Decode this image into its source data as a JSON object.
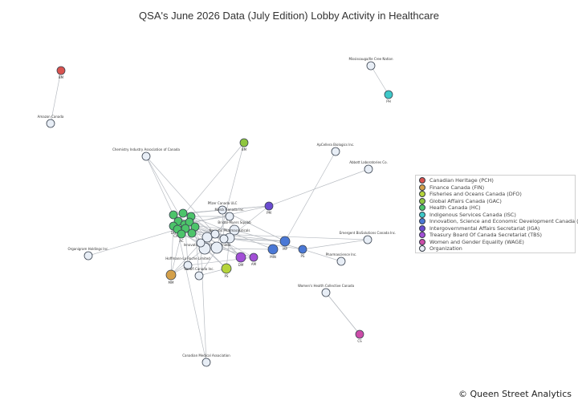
{
  "title": "QSA's June 2026 Data (July Edition) Lobby Activity in Healthcare",
  "credit": "© Queen Street Analytics",
  "legend": [
    {
      "label": "Canadian Heritage (PCH)",
      "color": "#d9534f"
    },
    {
      "label": "Finance Canada (FIN)",
      "color": "#d4a04a"
    },
    {
      "label": "Fisheries and Oceans Canada (DFO)",
      "color": "#b5d43b"
    },
    {
      "label": "Global Affairs Canada (GAC)",
      "color": "#8fc63f"
    },
    {
      "label": "Health Canada (HC)",
      "color": "#4cc46a"
    },
    {
      "label": "Indigenous Services Canada (ISC)",
      "color": "#3ec8c8"
    },
    {
      "label": "Innovation, Science and Economic Development Canada (ISED)",
      "color": "#4a78d6"
    },
    {
      "label": "Intergovernmental Affairs Secretariat (IGA)",
      "color": "#6a4bd0"
    },
    {
      "label": "Treasury Board Of Canada Secretariat (TBS)",
      "color": "#a24fd6"
    },
    {
      "label": "Women and Gender Equality (WAGE)",
      "color": "#cc4ca8"
    },
    {
      "label": "Organization",
      "color": "#e8eef6"
    }
  ],
  "nodes": [
    {
      "id": "pch",
      "label": "BM",
      "type": "Canadian Heritage (PCH)"
    },
    {
      "id": "amazon",
      "label": "Amazon Canada",
      "type": "Organization"
    },
    {
      "id": "mcn",
      "label": "Mississauga/Ile Cree Nation",
      "type": "Organization"
    },
    {
      "id": "isc",
      "label": "PH",
      "type": "Indigenous Services Canada (ISC)"
    },
    {
      "id": "chem",
      "label": "Chemistry Industry Association of Canada",
      "type": "Organization"
    },
    {
      "id": "gac",
      "label": "BM",
      "type": "Global Affairs Canada (GAC)"
    },
    {
      "id": "bio",
      "label": "ApCellera Biologics Inc.",
      "type": "Organization"
    },
    {
      "id": "abbott",
      "label": "Abbott Laboratories Co.",
      "type": "Organization"
    },
    {
      "id": "pfizer",
      "label": "Pfizer Canada ULC",
      "type": "Organization"
    },
    {
      "id": "bms",
      "label": "Merck Canada Inc.",
      "type": "Organization"
    },
    {
      "id": "msd",
      "label": "Bristol-Myers Squibb",
      "type": "Organization"
    },
    {
      "id": "gsk",
      "label": "Innovative Medicines Canada",
      "type": "Organization"
    },
    {
      "id": "novartis",
      "label": "Novartis Pharmaceuticals",
      "type": "Organization"
    },
    {
      "id": "iga",
      "label": "PM",
      "type": "Intergovernmental Affairs Secretariat (IGA)"
    },
    {
      "id": "emergent",
      "label": "Emergent BioSolutions Canada Inc.",
      "type": "Organization"
    },
    {
      "id": "ised1",
      "label": "MP",
      "type": "Innovation, Science and Economic Development Canada (ISED)"
    },
    {
      "id": "ised2",
      "label": "PS",
      "type": "Innovation, Science and Economic Development Canada (ISED)"
    },
    {
      "id": "ised3",
      "label": "MIN",
      "type": "Innovation, Science and Economic Development Canada (ISED)"
    },
    {
      "id": "pharmascience",
      "label": "Pharmascience Inc.",
      "type": "Organization"
    },
    {
      "id": "tbs1",
      "label": "DM",
      "type": "Treasury Board Of Canada Secretariat (TBS)"
    },
    {
      "id": "tbs2",
      "label": "AM",
      "type": "Treasury Board Of Canada Secretariat (TBS)"
    },
    {
      "id": "dfo",
      "label": "PS",
      "type": "Fisheries and Oceans Canada (DFO)"
    },
    {
      "id": "organigram",
      "label": "Organigram Holdings Inc.",
      "type": "Organization"
    },
    {
      "id": "roche",
      "label": "Hoffmann-La Roche Limited",
      "type": "Organization"
    },
    {
      "id": "sanofi",
      "label": "Sanofi Canada Inc.",
      "type": "Organization"
    },
    {
      "id": "fin",
      "label": "MM",
      "type": "Finance Canada (FIN)"
    },
    {
      "id": "whc",
      "label": "Women's Health Collective Canada",
      "type": "Organization"
    },
    {
      "id": "wage",
      "label": "CS",
      "type": "Women and Gender Equality (WAGE)"
    },
    {
      "id": "cma",
      "label": "Canadian Medical Association",
      "type": "Organization"
    },
    {
      "id": "hc1",
      "label": "PH",
      "type": "Health Canada (HC)"
    },
    {
      "id": "hc2",
      "label": "MP",
      "type": "Health Canada (HC)"
    },
    {
      "id": "hc3",
      "label": "ADM",
      "type": "Health Canada (HC)"
    },
    {
      "id": "hc4",
      "label": "DM",
      "type": "Health Canada (HC)"
    },
    {
      "id": "hc5",
      "label": "MIN",
      "type": "Health Canada (HC)"
    },
    {
      "id": "hc6",
      "label": "DG",
      "type": "Health Canada (HC)"
    },
    {
      "id": "hc7",
      "label": "PS",
      "type": "Health Canada (HC)"
    },
    {
      "id": "hc8",
      "label": "CMO",
      "type": "Health Canada (HC)"
    },
    {
      "id": "hc9",
      "label": "SP",
      "type": "Health Canada (HC)"
    },
    {
      "id": "hc10",
      "label": "PM",
      "type": "Health Canada (HC)"
    },
    {
      "id": "hc11",
      "label": "AC",
      "type": "Health Canada (HC)"
    },
    {
      "id": "hc12",
      "label": "CS",
      "type": "Health Canada (HC)"
    },
    {
      "id": "orgA",
      "label": "Canadian Generic Pharmaceutical Association",
      "type": "Organization"
    },
    {
      "id": "orgB",
      "label": "AstraZeneca Canada Inc.",
      "type": "Organization"
    },
    {
      "id": "orgC",
      "label": "Johnson & Johnson",
      "type": "Organization"
    },
    {
      "id": "orgD",
      "label": "BIOTECanada",
      "type": "Organization"
    },
    {
      "id": "orgE",
      "label": "Medtronic of Canada Ltd.",
      "type": "Organization"
    }
  ],
  "edges": [
    [
      "pch",
      "amazon"
    ],
    [
      "mcn",
      "isc"
    ],
    [
      "bio",
      "ised1"
    ],
    [
      "abbott",
      "iga"
    ],
    [
      "chem",
      "hc1"
    ],
    [
      "chem",
      "hc5"
    ],
    [
      "chem",
      "orgA"
    ],
    [
      "gac",
      "hc4"
    ],
    [
      "gac",
      "orgB"
    ],
    [
      "pfizer",
      "hc1"
    ],
    [
      "pfizer",
      "hc2"
    ],
    [
      "pfizer",
      "iga"
    ],
    [
      "pfizer",
      "ised1"
    ],
    [
      "bms",
      "hc3"
    ],
    [
      "bms",
      "hc7"
    ],
    [
      "msd",
      "hc5"
    ],
    [
      "msd",
      "ised2"
    ],
    [
      "gsk",
      "hc2"
    ],
    [
      "gsk",
      "ised1"
    ],
    [
      "gsk",
      "tbs1"
    ],
    [
      "novartis",
      "hc6"
    ],
    [
      "novartis",
      "dfo"
    ],
    [
      "emergent",
      "ised2"
    ],
    [
      "pharmascience",
      "ised2"
    ],
    [
      "organigram",
      "hc8"
    ],
    [
      "roche",
      "hc9"
    ],
    [
      "roche",
      "fin"
    ],
    [
      "sanofi",
      "hc10"
    ],
    [
      "sanofi",
      "dfo"
    ],
    [
      "whc",
      "wage"
    ],
    [
      "cma",
      "orgE"
    ],
    [
      "fin",
      "orgC"
    ],
    [
      "fin",
      "hc11"
    ],
    [
      "orgA",
      "hc1"
    ],
    [
      "orgA",
      "hc2"
    ],
    [
      "orgA",
      "hc3"
    ],
    [
      "orgA",
      "hc4"
    ],
    [
      "orgA",
      "ised1"
    ],
    [
      "orgA",
      "tbs1"
    ],
    [
      "orgB",
      "hc5"
    ],
    [
      "orgB",
      "hc6"
    ],
    [
      "orgB",
      "tbs2"
    ],
    [
      "orgB",
      "iga"
    ],
    [
      "orgC",
      "hc7"
    ],
    [
      "orgC",
      "hc8"
    ],
    [
      "orgC",
      "dfo"
    ],
    [
      "orgC",
      "ised3"
    ],
    [
      "orgD",
      "hc9"
    ],
    [
      "orgD",
      "hc10"
    ],
    [
      "orgD",
      "ised1"
    ],
    [
      "orgD",
      "tbs1"
    ],
    [
      "orgE",
      "hc11"
    ],
    [
      "orgE",
      "hc12"
    ],
    [
      "orgE",
      "fin"
    ],
    [
      "orgE",
      "dfo"
    ],
    [
      "hc1",
      "tbs2"
    ],
    [
      "hc2",
      "iga"
    ],
    [
      "hc3",
      "ised3"
    ],
    [
      "hc4",
      "tbs1"
    ],
    [
      "hc6",
      "fin"
    ],
    [
      "roche",
      "tbs2"
    ],
    [
      "sanofi",
      "orgD"
    ],
    [
      "msd",
      "orgB"
    ],
    [
      "bms",
      "orgC"
    ],
    [
      "gsk",
      "orgE"
    ],
    [
      "novartis",
      "orgA"
    ],
    [
      "pfizer",
      "orgD"
    ],
    [
      "emergent",
      "orgA"
    ],
    [
      "wage",
      "whc"
    ],
    [
      "hc12",
      "ised2"
    ],
    [
      "hc8",
      "cma"
    ],
    [
      "hc5",
      "iga"
    ]
  ]
}
